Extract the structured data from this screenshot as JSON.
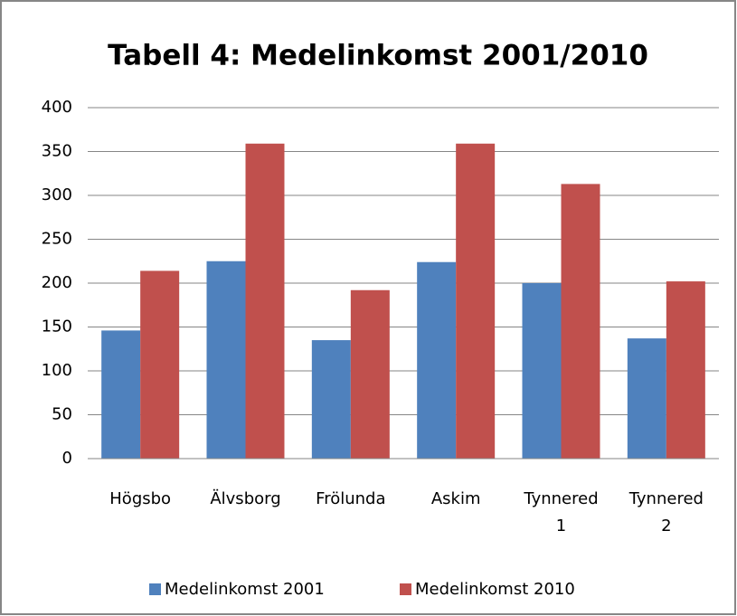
{
  "chart_data": {
    "type": "bar",
    "title": "Tabell 4: Medelinkomst 2001/2010",
    "categories": [
      "Högsbo",
      "Älvsborg",
      "Frölunda",
      "Askim",
      "Tynnered 1",
      "Tynnered 2"
    ],
    "series": [
      {
        "name": "Medelinkomst 2001",
        "color": "#4f81bd",
        "values": [
          146,
          225,
          135,
          224,
          200,
          137
        ]
      },
      {
        "name": "Medelinkomst 2010",
        "color": "#c0504d",
        "values": [
          214,
          359,
          192,
          359,
          313,
          202
        ]
      }
    ],
    "ylim": [
      0,
      400
    ],
    "yticks": [
      0,
      50,
      100,
      150,
      200,
      250,
      300,
      350,
      400
    ],
    "grid": true,
    "legend": "bottom"
  }
}
